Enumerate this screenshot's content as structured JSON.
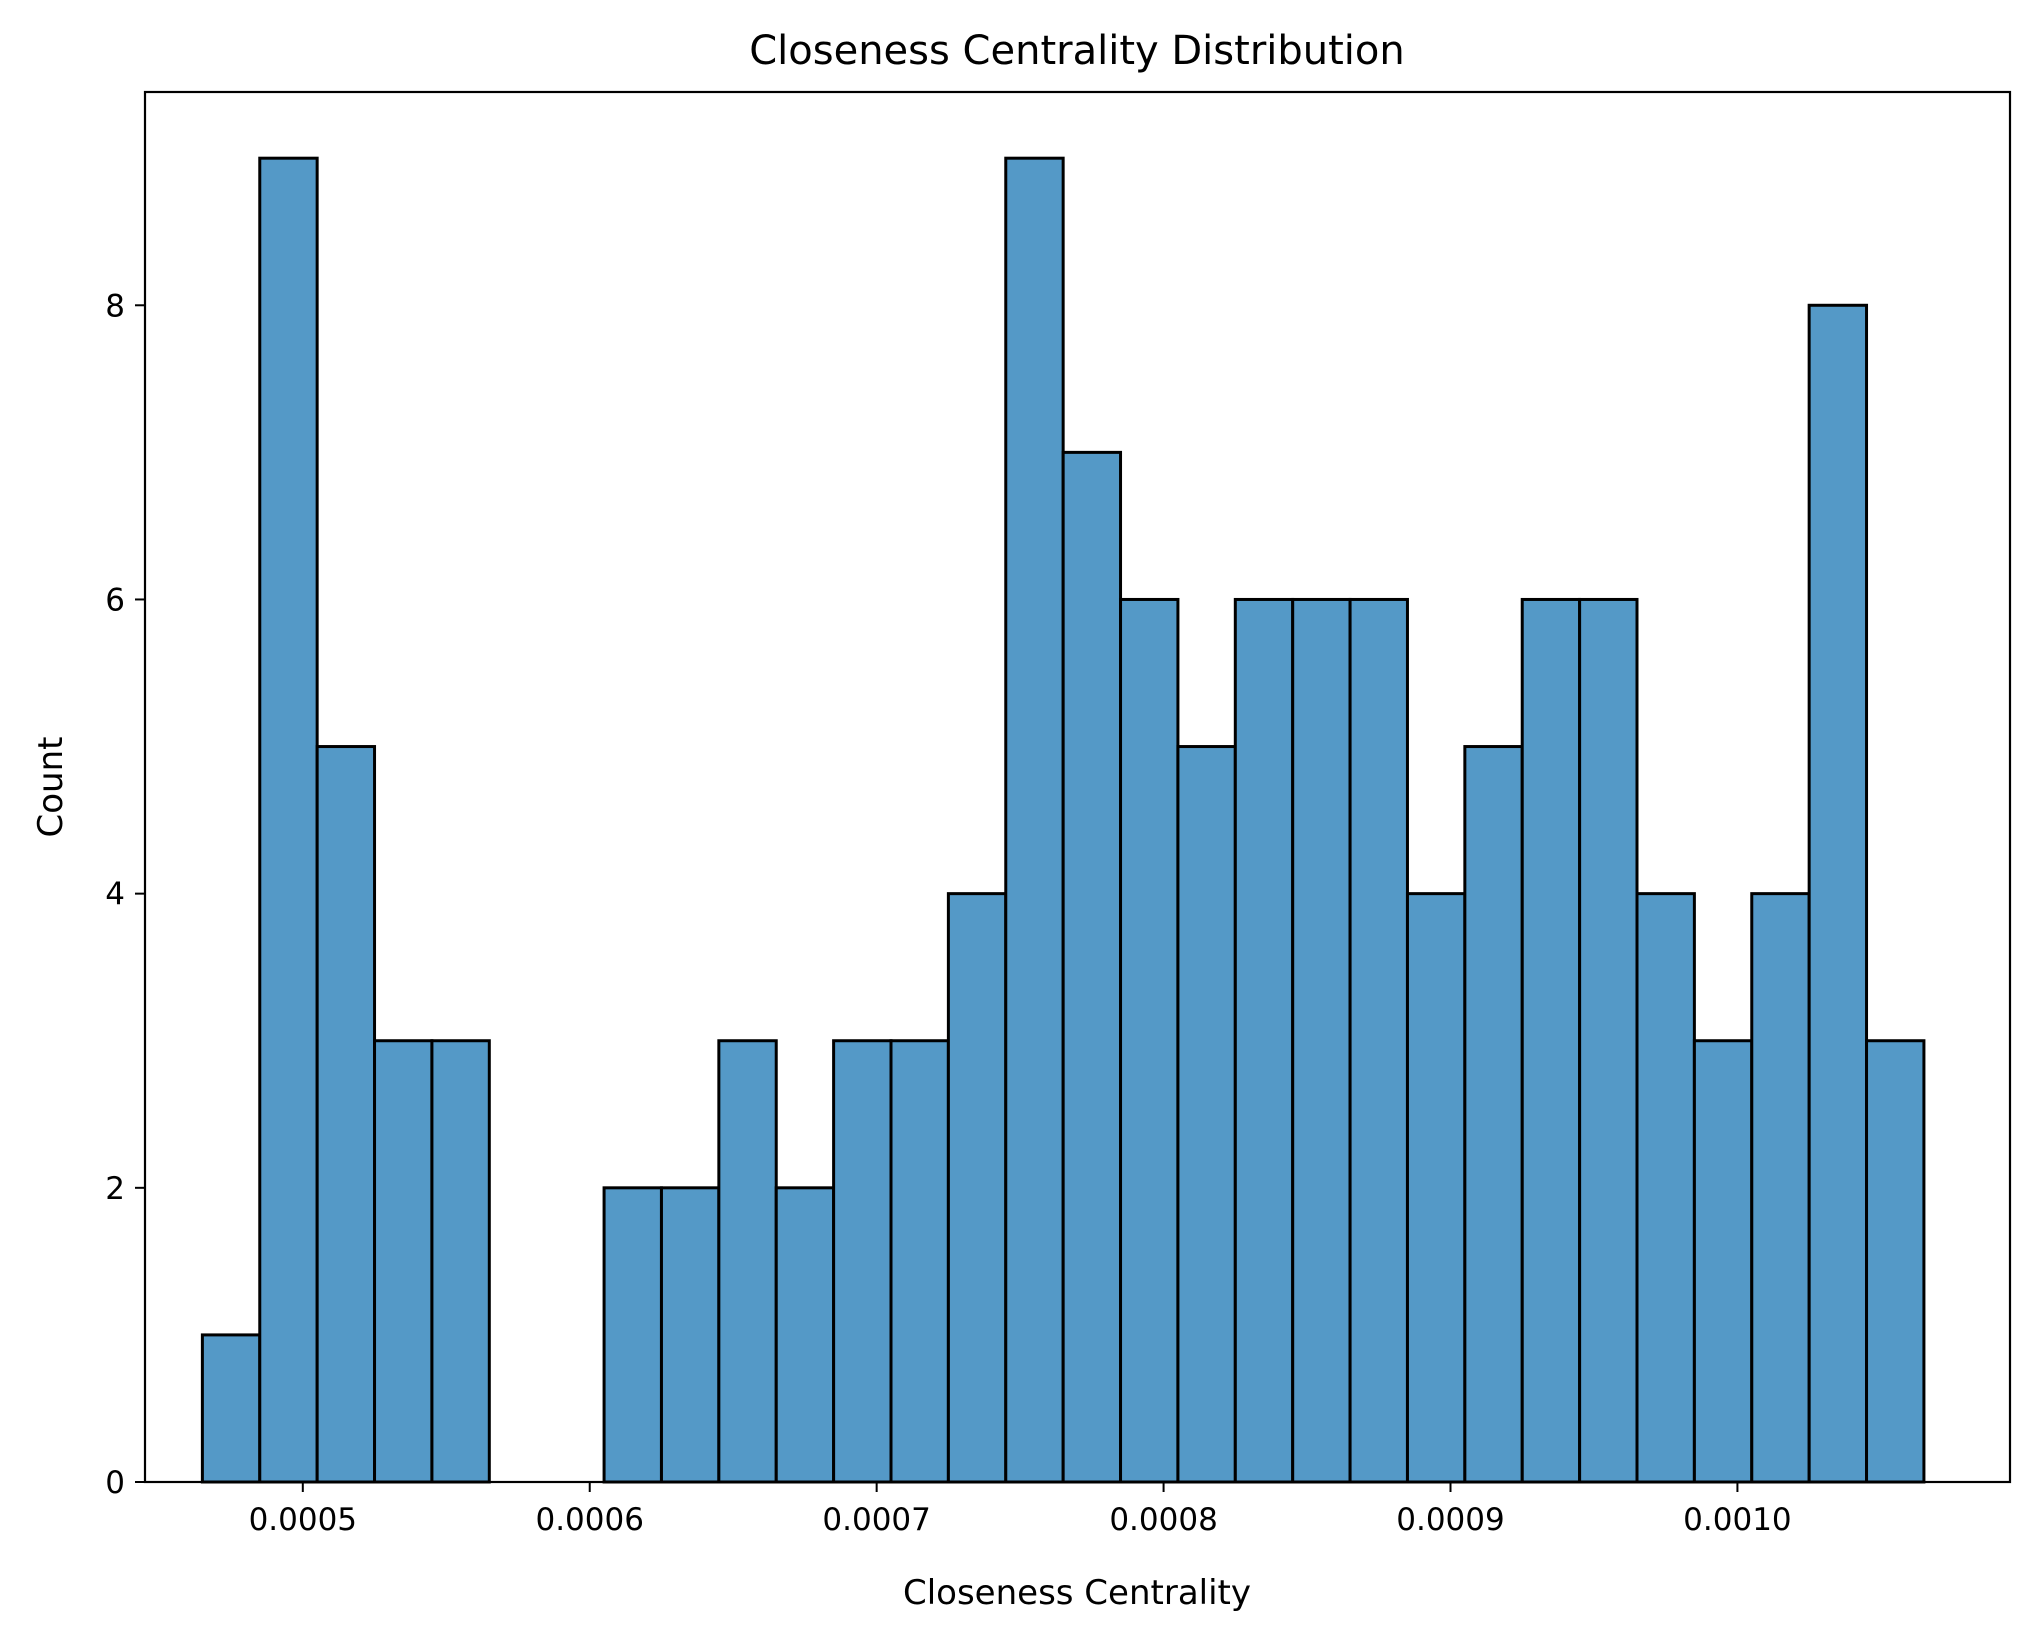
{
  "chart_data": {
    "type": "bar",
    "title": "Closeness Centrality Distribution",
    "xlabel": "Closeness Centrality",
    "ylabel": "Count",
    "bar_color": "#5499c7",
    "edge_color": "#000000",
    "bin_edges": [
      0.000465,
      0.000485,
      0.000505,
      0.000525,
      0.000545,
      0.000565,
      0.000585,
      0.000605,
      0.000625,
      0.000645,
      0.000665,
      0.000685,
      0.000705,
      0.000725,
      0.000745,
      0.000765,
      0.000785,
      0.000805,
      0.000825,
      0.000845,
      0.000865,
      0.000885,
      0.000905,
      0.000925,
      0.000945,
      0.000965,
      0.000985,
      0.001005,
      0.001025,
      0.001045,
      0.001065
    ],
    "counts": [
      1,
      9,
      5,
      3,
      3,
      0,
      0,
      2,
      2,
      3,
      2,
      3,
      3,
      4,
      9,
      7,
      6,
      5,
      6,
      6,
      6,
      4,
      5,
      6,
      6,
      4,
      3,
      4,
      8,
      3
    ],
    "xlim": [
      0.000445,
      0.001095
    ],
    "ylim": [
      0,
      9.45
    ],
    "x_ticks": [
      {
        "value": 0.0005,
        "label": "0.0005"
      },
      {
        "value": 0.0006,
        "label": "0.0006"
      },
      {
        "value": 0.0007,
        "label": "0.0007"
      },
      {
        "value": 0.0008,
        "label": "0.0008"
      },
      {
        "value": 0.0009,
        "label": "0.0009"
      },
      {
        "value": 0.001,
        "label": "0.0010"
      }
    ],
    "y_ticks": [
      {
        "value": 0,
        "label": "0"
      },
      {
        "value": 2,
        "label": "2"
      },
      {
        "value": 4,
        "label": "4"
      },
      {
        "value": 6,
        "label": "6"
      },
      {
        "value": 8,
        "label": "8"
      }
    ],
    "grid": false,
    "legend": "none"
  }
}
